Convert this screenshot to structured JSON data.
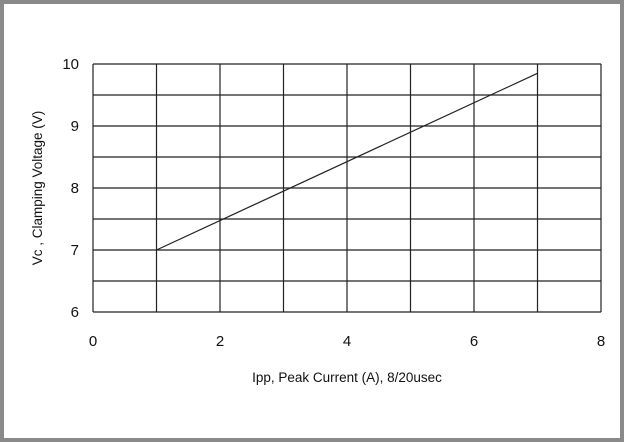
{
  "chart_data": {
    "type": "line",
    "title": "",
    "xlabel": "Ipp, Peak Current (A), 8/20usec",
    "ylabel": "Vc , Clamping Voltage (V)",
    "xlim": [
      0,
      8
    ],
    "ylim": [
      6,
      10
    ],
    "x_ticks": [
      "0",
      "2",
      "4",
      "6",
      "8"
    ],
    "y_ticks": [
      "6",
      "7",
      "8",
      "9",
      "10"
    ],
    "grid": true,
    "legend": "none",
    "series": [
      {
        "x": [
          1,
          7
        ],
        "y": [
          7.0,
          9.85
        ]
      }
    ]
  }
}
